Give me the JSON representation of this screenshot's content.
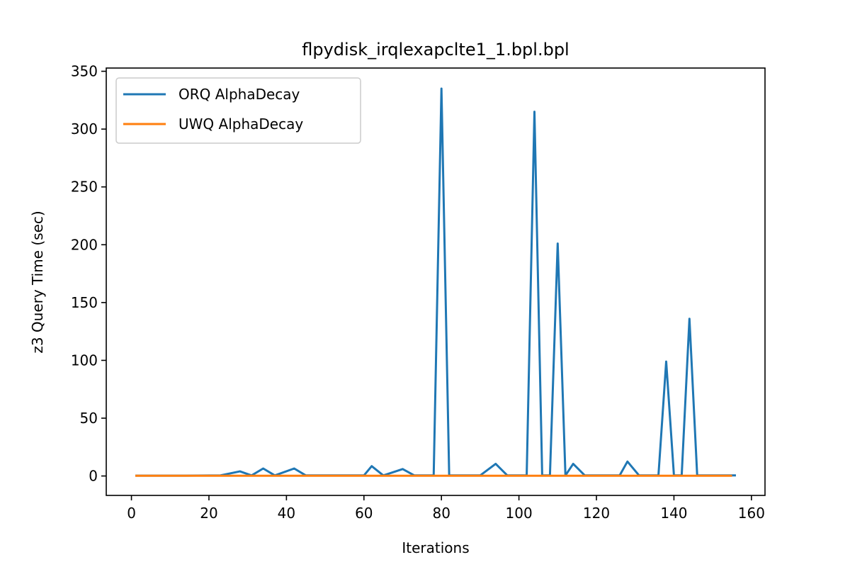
{
  "chart_data": {
    "type": "line",
    "title": "flpydisk_irqlexapclte1_1.bpl.bpl",
    "xlabel": "Iterations",
    "ylabel": "z3 Query Time (sec)",
    "xlim": [
      -6.5,
      163.5
    ],
    "ylim": [
      -16.8,
      352.8
    ],
    "xticks": [
      0,
      20,
      40,
      60,
      80,
      100,
      120,
      140,
      160
    ],
    "yticks": [
      0,
      50,
      100,
      150,
      200,
      250,
      300,
      350
    ],
    "grid": false,
    "legend": "upper-left",
    "series": [
      {
        "name": "ORQ AlphaDecay",
        "color": "#1f77b4",
        "x": [
          1,
          14,
          23,
          28,
          31,
          34,
          37,
          42,
          45,
          50,
          60,
          62,
          65,
          70,
          73,
          78,
          80,
          82,
          90,
          94,
          97,
          102,
          104,
          106,
          108,
          110,
          112,
          114,
          117,
          122,
          126,
          128,
          131,
          136,
          138,
          140,
          142,
          144,
          146,
          150,
          156
        ],
        "y": [
          0.3,
          0.3,
          0.5,
          4,
          0.5,
          6.5,
          0.5,
          6.5,
          0.5,
          0.5,
          0.5,
          8.5,
          0.5,
          6,
          0.5,
          0.5,
          335,
          0.5,
          0.5,
          10.5,
          0.5,
          0.5,
          315,
          0.5,
          0.5,
          201,
          0.5,
          10.5,
          0.5,
          0.5,
          0.5,
          12.5,
          0.5,
          0.5,
          99,
          0.5,
          0.5,
          136,
          0.5,
          0.5,
          0.5
        ]
      },
      {
        "name": "UWQ AlphaDecay",
        "color": "#ff7f0e",
        "x": [
          1,
          20,
          40,
          60,
          80,
          100,
          120,
          140,
          155
        ],
        "y": [
          0.2,
          0.2,
          0.2,
          0.2,
          0.2,
          0.2,
          0.2,
          0.2,
          0.2
        ]
      }
    ]
  }
}
